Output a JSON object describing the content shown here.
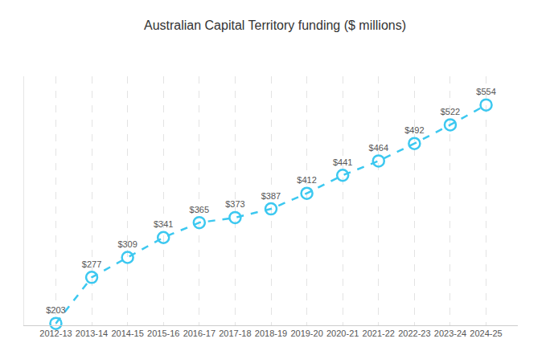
{
  "chart_data": {
    "type": "line",
    "title": "Australian Capital Territory funding ($ millions)",
    "categories": [
      "2012-13",
      "2013-14",
      "2014-15",
      "2015-16",
      "2016-17",
      "2017-18",
      "2018-19",
      "2019-20",
      "2020-21",
      "2021-22",
      "2022-23",
      "2023-24",
      "2024-25"
    ],
    "values": [
      203,
      277,
      309,
      341,
      365,
      373,
      387,
      412,
      441,
      464,
      492,
      522,
      554
    ],
    "value_labels": [
      "$203",
      "$277",
      "$309",
      "$341",
      "$365",
      "$373",
      "$387",
      "$412",
      "$441",
      "$464",
      "$492",
      "$522",
      "$554"
    ],
    "color": "#3cc8f0",
    "marker": "circle-open",
    "line_style": "dash",
    "ylim": [
      200,
      600
    ],
    "grid": "x",
    "data_labels": true,
    "tick_labels": "x"
  }
}
